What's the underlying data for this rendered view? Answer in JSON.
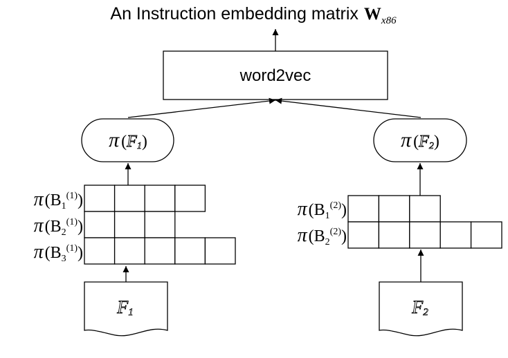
{
  "title": {
    "text": "An Instruction embedding matrix",
    "matrix_symbol": "W",
    "matrix_subscript": "x86"
  },
  "model_box": {
    "label": "word2vec"
  },
  "functions": [
    {
      "pi": "π",
      "func_letter": "F",
      "func_index": "1",
      "file_letter": "F",
      "file_index": "1",
      "block_rows": [
        {
          "pi": "π",
          "name": "B",
          "index": "1",
          "superscript": "(1)",
          "cells": 4
        },
        {
          "pi": "π",
          "name": "B",
          "index": "2",
          "superscript": "(1)",
          "cells": 3
        },
        {
          "pi": "π",
          "name": "B",
          "index": "3",
          "superscript": "(1)",
          "cells": 5
        }
      ]
    },
    {
      "pi": "π",
      "func_letter": "F",
      "func_index": "2",
      "file_letter": "F",
      "file_index": "2",
      "block_rows": [
        {
          "pi": "π",
          "name": "B",
          "index": "1",
          "superscript": "(2)",
          "cells": 3
        },
        {
          "pi": "π",
          "name": "B",
          "index": "2",
          "superscript": "(2)",
          "cells": 5
        }
      ]
    }
  ]
}
